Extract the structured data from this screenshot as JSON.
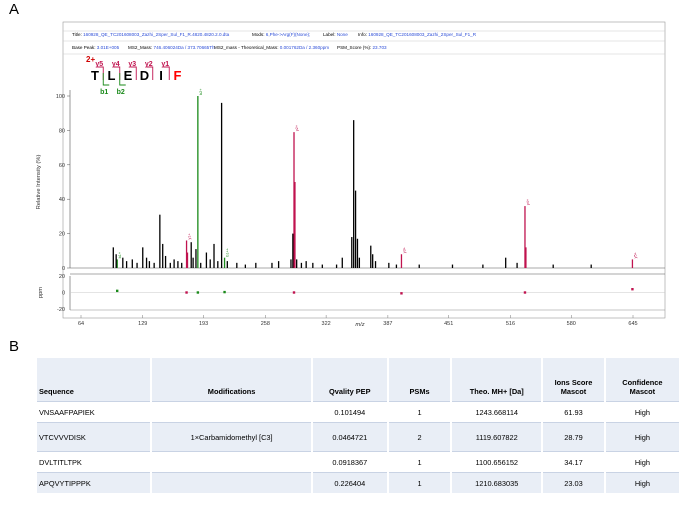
{
  "panels": {
    "a": "A",
    "b": "B"
  },
  "spectrum": {
    "header": {
      "title_label": "Title:",
      "title_value": "160928_QE_TC201608003_Zazhi_2Sper_Sul_F1_R.4820.4820.2.0.dta",
      "mods_label": "Mods:",
      "mods_value": "6,Phe->Arg(F)(None);",
      "label_label": "Label:",
      "label_value": "None",
      "info_label": "Info:",
      "info_value": "160928_QE_TC201608003_Zazhi_2Sper_Sul_F1_R",
      "basepeak_label": "Base Peak:",
      "basepeak_value": "3.01E+005",
      "ms2mass_label": "MS2_Mass:",
      "ms2mass_value": "746.406024Da / 373.70665Th",
      "ms2diff_label": "MS2_mass - Theoretical_Mass:",
      "ms2diff_value": "0.001762Da / 2.360ppm",
      "psm_label": "PSM_Score (%):",
      "psm_value": "23.703"
    },
    "sequence": {
      "charge": "2+",
      "residues": [
        "T",
        "L",
        "E",
        "D",
        "I",
        "F"
      ],
      "y_ions": [
        "y5",
        "y4",
        "y3",
        "y2",
        "y1"
      ],
      "b_ions": [
        "b1",
        "b2"
      ],
      "colors": {
        "y": "#c0134f",
        "b": "#1a8a1a",
        "mod": "#ff0000",
        "residue": "#000000"
      }
    }
  },
  "chart_data": [
    {
      "type": "bar",
      "title": "",
      "xlabel": "m/z",
      "ylabel": "Relative Intensity (%)",
      "xlim": [
        50,
        660
      ],
      "ylim": [
        0,
        110
      ],
      "xticks": [
        64,
        129,
        193,
        258,
        322,
        387,
        451,
        516,
        580,
        645
      ],
      "yticks": [
        0,
        20,
        40,
        60,
        80,
        100
      ],
      "series": [
        {
          "name": "y",
          "color": "#c0134f",
          "points": [
            [
              175.1,
              16
            ],
            [
              176.1,
              9
            ],
            [
              288.2,
              79
            ],
            [
              289.2,
              50
            ],
            [
              401.3,
              8
            ],
            [
              531.3,
              36
            ],
            [
              532.3,
              12
            ],
            [
              644.4,
              5
            ]
          ],
          "labels": [
            [
              175.1,
              16,
              "y1+"
            ],
            [
              288.2,
              79,
              "y2+"
            ],
            [
              401.3,
              8,
              "y3+"
            ],
            [
              531.3,
              36,
              "y4+"
            ],
            [
              644.4,
              5,
              "y5+"
            ]
          ]
        },
        {
          "name": "b",
          "color": "#1a8a1a",
          "points": [
            [
              102.1,
              5
            ],
            [
              187.0,
              100
            ],
            [
              215.1,
              6
            ]
          ],
          "labels": [
            [
              102.1,
              5,
              "b1+"
            ],
            [
              187.0,
              100,
              "b2+"
            ],
            [
              215.1,
              6,
              "b1++"
            ]
          ]
        },
        {
          "name": "unassigned",
          "color": "#000000",
          "points": [
            [
              98,
              12
            ],
            [
              101,
              8
            ],
            [
              108,
              6
            ],
            [
              112,
              4
            ],
            [
              118,
              5
            ],
            [
              123,
              3
            ],
            [
              129,
              12
            ],
            [
              133,
              6
            ],
            [
              136,
              4
            ],
            [
              141,
              3
            ],
            [
              147,
              31
            ],
            [
              150,
              14
            ],
            [
              153,
              7
            ],
            [
              158,
              3
            ],
            [
              162,
              5
            ],
            [
              166,
              4
            ],
            [
              170,
              3
            ],
            [
              180,
              15
            ],
            [
              182,
              6
            ],
            [
              185,
              11
            ],
            [
              190,
              3
            ],
            [
              196,
              9
            ],
            [
              200,
              5
            ],
            [
              204,
              14
            ],
            [
              208,
              4
            ],
            [
              212,
              96
            ],
            [
              218,
              4
            ],
            [
              228,
              3
            ],
            [
              237,
              2
            ],
            [
              248,
              3
            ],
            [
              265,
              3
            ],
            [
              272,
              4
            ],
            [
              285,
              5
            ],
            [
              287,
              20
            ],
            [
              291,
              5
            ],
            [
              296,
              3
            ],
            [
              301,
              4
            ],
            [
              308,
              3
            ],
            [
              318,
              2
            ],
            [
              333,
              2
            ],
            [
              339,
              6
            ],
            [
              349,
              18
            ],
            [
              351,
              86
            ],
            [
              353,
              45
            ],
            [
              355,
              17
            ],
            [
              357,
              6
            ],
            [
              369,
              13
            ],
            [
              371,
              8
            ],
            [
              374,
              4
            ],
            [
              388,
              3
            ],
            [
              396,
              2
            ],
            [
              420,
              2
            ],
            [
              455,
              2
            ],
            [
              487,
              2
            ],
            [
              511,
              6
            ],
            [
              523,
              3
            ],
            [
              561,
              2
            ],
            [
              601,
              2
            ]
          ]
        }
      ]
    },
    {
      "type": "scatter",
      "xlabel": "m/z",
      "ylabel": "ppm",
      "ylim": [
        -20,
        20
      ],
      "yticks": [
        -20,
        0,
        20
      ],
      "series": [
        {
          "name": "b",
          "color": "#1a8a1a",
          "points": [
            [
              102.1,
              2
            ],
            [
              187.0,
              0
            ],
            [
              215.1,
              0.5
            ]
          ]
        },
        {
          "name": "y",
          "color": "#c0134f",
          "points": [
            [
              175.1,
              0
            ],
            [
              288.2,
              0
            ],
            [
              401.3,
              -1
            ],
            [
              531.3,
              0
            ],
            [
              644.4,
              4
            ]
          ]
        }
      ]
    },
    {
      "type": "table",
      "columns": [
        "Sequence",
        "Modifications",
        "Qvality PEP",
        "PSMs",
        "Theo. MH+ [Da]",
        "Ions Score Mascot",
        "Confidence Mascot"
      ],
      "rows": [
        [
          "VNSAAFPAPIEK",
          "",
          "0.101494",
          "1",
          "1243.668114",
          "61.93",
          "High"
        ],
        [
          "VTCVVVDISK",
          "1×Carbamidomethyl [C3]",
          "0.0464721",
          "2",
          "1119.607822",
          "28.79",
          "High"
        ],
        [
          "DVLTITLTPK",
          "",
          "0.0918367",
          "1",
          "1100.656152",
          "34.17",
          "High"
        ],
        [
          "APQVYTIPPPK",
          "",
          "0.226404",
          "1",
          "1210.683035",
          "23.03",
          "High"
        ]
      ]
    }
  ]
}
